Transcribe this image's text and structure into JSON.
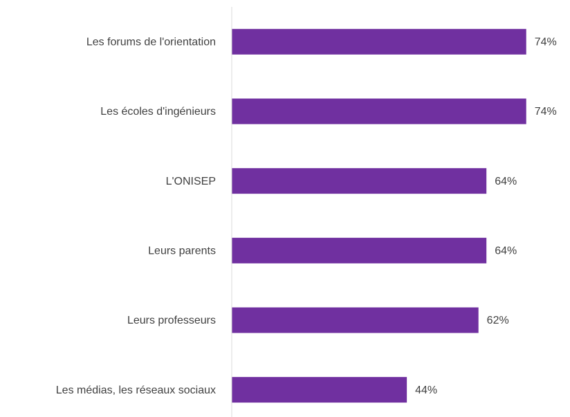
{
  "chart_data": {
    "type": "bar",
    "orientation": "horizontal",
    "categories": [
      "Les forums de l'orientation",
      "Les écoles d'ingénieurs",
      "L'ONISEP",
      "Leurs parents",
      "Leurs professeurs",
      "Les médias, les réseaux sociaux"
    ],
    "values": [
      74,
      74,
      64,
      64,
      62,
      44
    ],
    "value_labels": [
      "74%",
      "74%",
      "64%",
      "64%",
      "62%",
      "44%"
    ],
    "color": "#7030a0",
    "xlim": [
      0,
      85
    ]
  }
}
